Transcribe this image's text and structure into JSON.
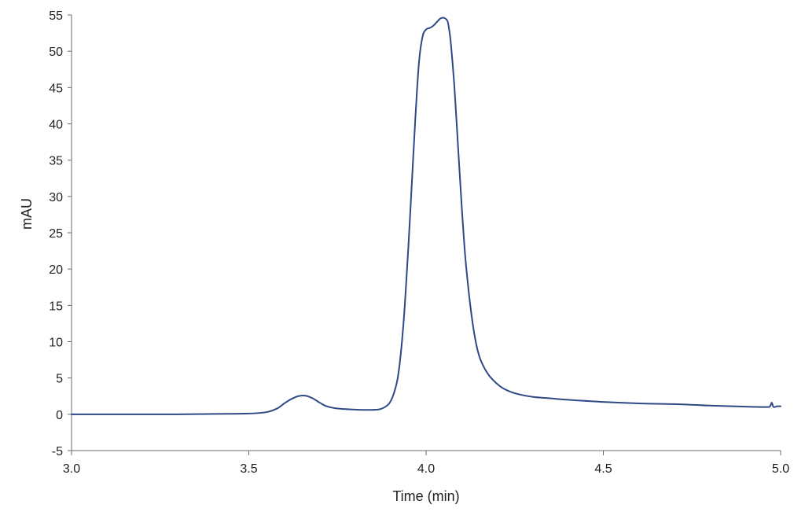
{
  "chart_data": {
    "type": "line",
    "title": "",
    "xlabel": "Time (min)",
    "ylabel": "mAU",
    "xlim": [
      3.0,
      5.0
    ],
    "ylim": [
      -5,
      55
    ],
    "x_ticks": [
      3.0,
      3.5,
      4.0,
      4.5,
      5.0
    ],
    "x_tick_labels": [
      "3.0",
      "3.5",
      "4.0",
      "4.5",
      "5.0"
    ],
    "y_ticks": [
      -5,
      0,
      5,
      10,
      15,
      20,
      25,
      30,
      35,
      40,
      45,
      50,
      55
    ],
    "y_tick_labels": [
      "-5",
      "0",
      "5",
      "10",
      "15",
      "20",
      "25",
      "30",
      "35",
      "40",
      "45",
      "50",
      "55"
    ],
    "grid": false,
    "legend": "none",
    "series": [
      {
        "color": "#2e4a86",
        "x": [
          3.0,
          3.1,
          3.2,
          3.3,
          3.4,
          3.5,
          3.55,
          3.58,
          3.6,
          3.62,
          3.64,
          3.66,
          3.68,
          3.7,
          3.72,
          3.75,
          3.8,
          3.84,
          3.87,
          3.89,
          3.9,
          3.91,
          3.92,
          3.93,
          3.94,
          3.95,
          3.96,
          3.97,
          3.98,
          3.99,
          4.0,
          4.01,
          4.02,
          4.03,
          4.04,
          4.05,
          4.06,
          4.065,
          4.07,
          4.08,
          4.09,
          4.1,
          4.11,
          4.12,
          4.13,
          4.14,
          4.15,
          4.16,
          4.17,
          4.18,
          4.2,
          4.22,
          4.25,
          4.3,
          4.35,
          4.4,
          4.5,
          4.6,
          4.7,
          4.8,
          4.9,
          4.96,
          4.97,
          4.975,
          4.98,
          4.99,
          5.0
        ],
        "y": [
          0.0,
          0.0,
          0.0,
          0.0,
          0.05,
          0.1,
          0.3,
          0.8,
          1.5,
          2.1,
          2.5,
          2.55,
          2.2,
          1.6,
          1.1,
          0.8,
          0.65,
          0.6,
          0.7,
          1.2,
          1.8,
          3.0,
          5.0,
          9.0,
          15.0,
          23.0,
          32.0,
          41.0,
          48.5,
          52.0,
          53.0,
          53.2,
          53.5,
          54.0,
          54.5,
          54.6,
          54.2,
          53.0,
          51.0,
          45.0,
          37.0,
          29.0,
          22.0,
          17.0,
          13.0,
          10.0,
          8.0,
          6.8,
          5.9,
          5.2,
          4.2,
          3.5,
          2.9,
          2.4,
          2.2,
          2.0,
          1.7,
          1.5,
          1.4,
          1.2,
          1.05,
          1.0,
          1.1,
          1.6,
          1.0,
          1.1,
          1.1
        ]
      }
    ]
  }
}
